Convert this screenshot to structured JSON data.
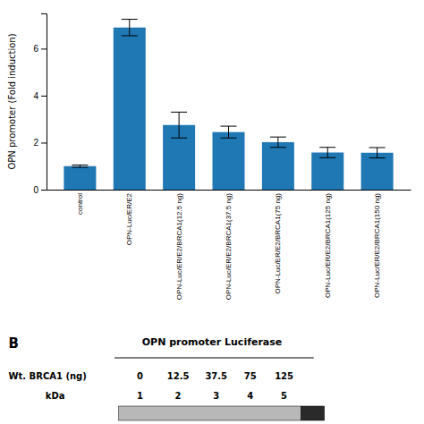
{
  "chart_data": {
    "type": "bar",
    "categories": [
      "control",
      "OPN-Luc/ER/E2",
      "OPN-Luc/ER/E2/BRCA1(12.5 ng)",
      "OPN-Luc/ER/E2/BRCA1(37.5 ng)",
      "OPN-Luc/ER/E2/BRCA1(75 ng)",
      "OPN-Luc/ER/E2/BRCA1(125 ng)",
      "OPN-Luc/ER/E2/BRCA1(150 ng)"
    ],
    "values": [
      1.0,
      6.9,
      2.75,
      2.45,
      2.02,
      1.58,
      1.57
    ],
    "errors": [
      0.05,
      0.35,
      0.55,
      0.25,
      0.22,
      0.22,
      0.22
    ],
    "ylabel": "OPN promoter (Fold induction)",
    "ylim": [
      0,
      7.5
    ],
    "yticks": [
      0,
      2,
      4,
      6
    ],
    "annotations": [
      "B",
      "OPN promoter Luciferase"
    ],
    "rows": [
      {
        "label": "Wt. BRCA1 (ng)",
        "values": [
          "0",
          "12.5",
          "37.5",
          "75",
          "125"
        ]
      },
      {
        "label": "kDa",
        "values": [
          "1",
          "2",
          "3",
          "4",
          "5"
        ]
      }
    ]
  }
}
